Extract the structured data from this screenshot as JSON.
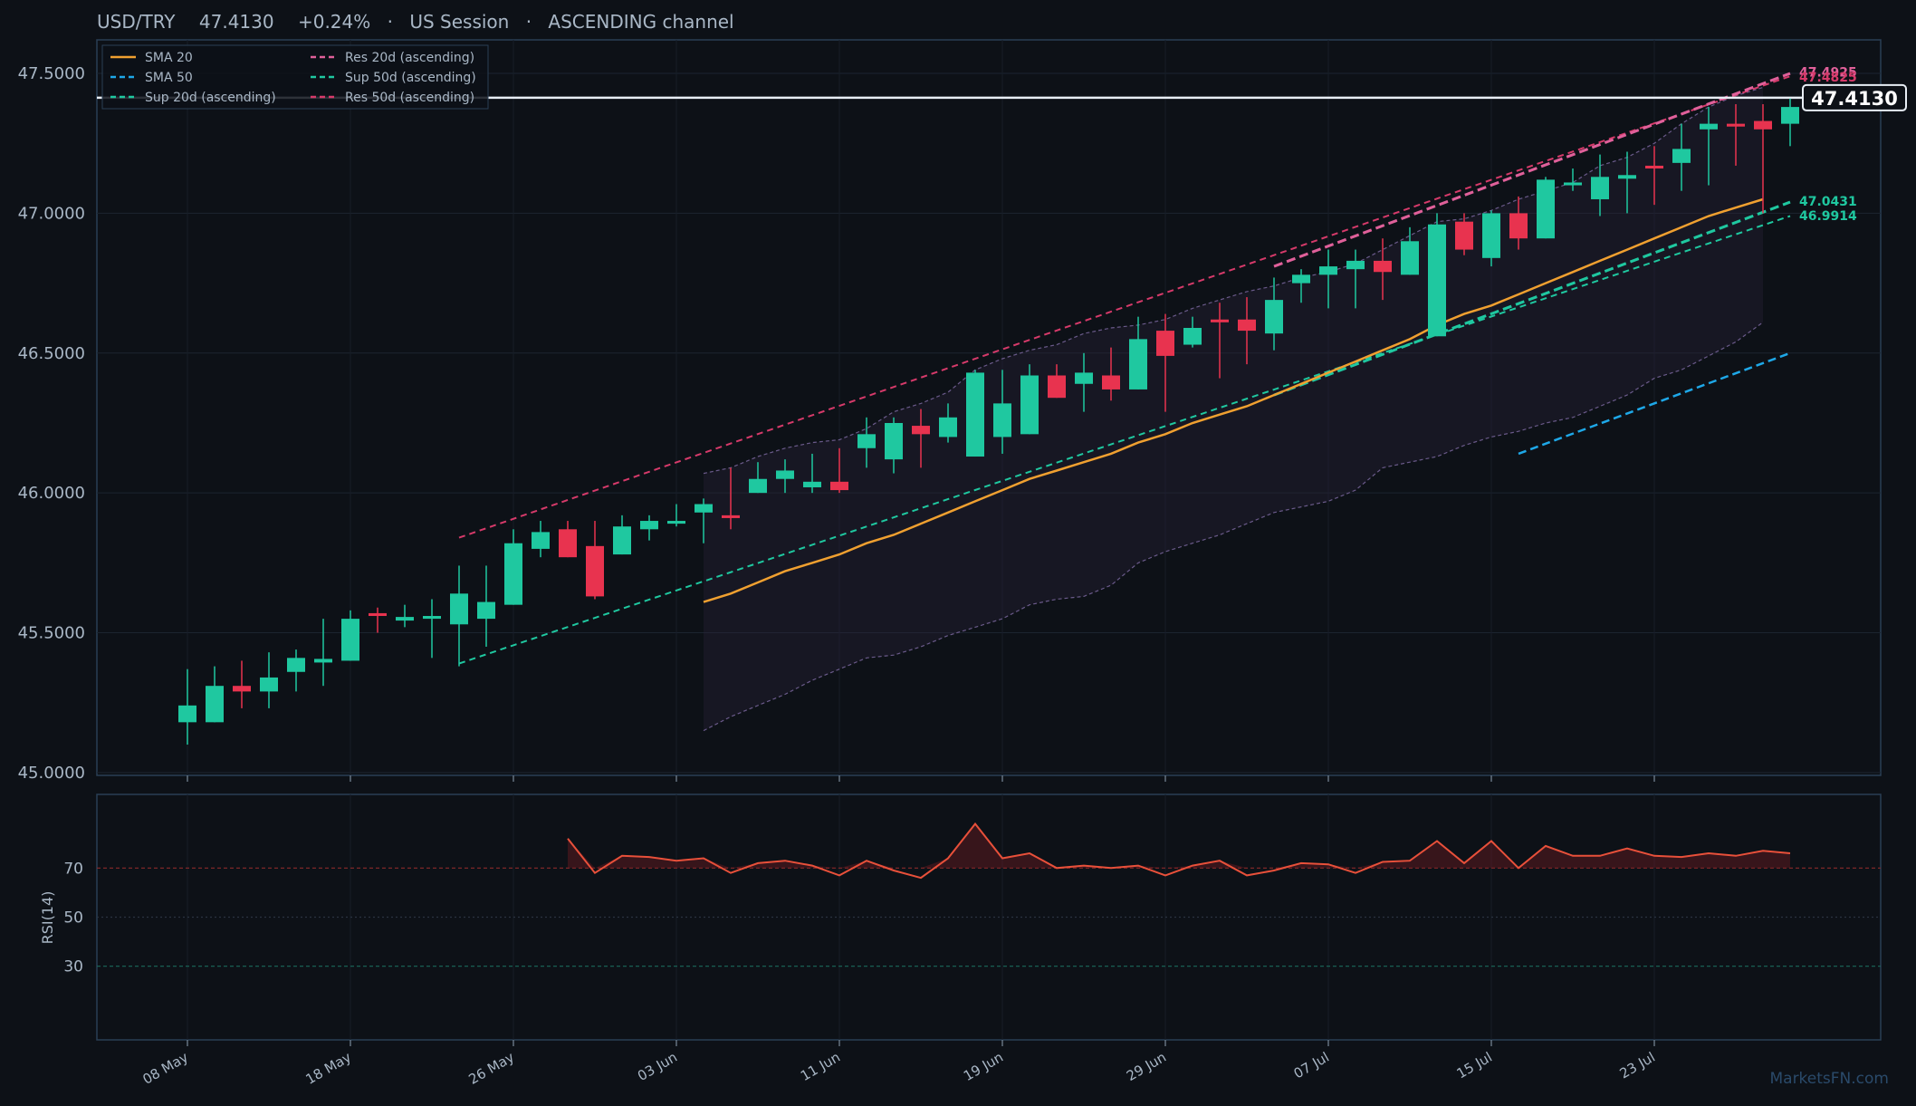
{
  "header": {
    "symbol": "USD/TRY",
    "price": "47.4130",
    "change": "+0.24%",
    "session": "US Session",
    "channel": "ASCENDING channel",
    "sep": "·"
  },
  "watermark": "MarketsFN.com",
  "colors": {
    "background": "#0d1117",
    "panel_border": "#2a3f55",
    "text": "#a9b7c6",
    "up": "#1fc8a0",
    "down": "#e8334f",
    "sma20": "#f0a030",
    "sma50": "#1ea8e8",
    "res": "#d63a6a",
    "res20": "#e0609a",
    "sup": "#1fc8a0",
    "rsi": "#e8503a",
    "band": "#6a5a8a"
  },
  "chart_data": [
    {
      "type": "candlestick",
      "title": "USD/TRY 47.4130 +0.24% · US Session · ASCENDING channel",
      "ylim": [
        44.99,
        47.62
      ],
      "yticks": [
        45.0,
        45.5,
        46.0,
        46.5,
        47.0,
        47.5
      ],
      "ytick_labels": [
        "45.0000",
        "45.5000",
        "46.0000",
        "46.5000",
        "47.0000",
        "47.5000"
      ],
      "xtick_labels": [
        "08 May",
        "18 May",
        "26 May",
        "03 Jun",
        "11 Jun",
        "19 Jun",
        "29 Jun",
        "07 Jul",
        "15 Jul",
        "23 Jul"
      ],
      "xtick_index": [
        0,
        6,
        12,
        18,
        24,
        30,
        36,
        42,
        48,
        54
      ],
      "grid": true,
      "legend_position": "top-left",
      "legend": [
        {
          "label": "SMA 20",
          "style": "solid",
          "color": "#f0a030"
        },
        {
          "label": "SMA 50",
          "style": "dashed",
          "color": "#1ea8e8"
        },
        {
          "label": "Sup 20d (ascending)",
          "style": "dashed",
          "color": "#1fc8a0"
        },
        {
          "label": "Res 20d (ascending)",
          "style": "dashed",
          "color": "#e0609a"
        },
        {
          "label": "Sup 50d (ascending)",
          "style": "dashed",
          "color": "#1fc8a0"
        },
        {
          "label": "Res 50d (ascending)",
          "style": "dashed",
          "color": "#d63a6a"
        }
      ],
      "candles": [
        {
          "o": 45.18,
          "h": 45.37,
          "l": 45.1,
          "c": 45.24
        },
        {
          "o": 45.18,
          "h": 45.38,
          "l": 45.18,
          "c": 45.31
        },
        {
          "o": 45.31,
          "h": 45.4,
          "l": 45.23,
          "c": 45.29
        },
        {
          "o": 45.29,
          "h": 45.43,
          "l": 45.23,
          "c": 45.34
        },
        {
          "o": 45.36,
          "h": 45.44,
          "l": 45.29,
          "c": 45.41
        },
        {
          "o": 45.4,
          "h": 45.55,
          "l": 45.31,
          "c": 45.4
        },
        {
          "o": 45.4,
          "h": 45.58,
          "l": 45.4,
          "c": 45.55
        },
        {
          "o": 45.57,
          "h": 45.59,
          "l": 45.5,
          "c": 45.56
        },
        {
          "o": 45.55,
          "h": 45.6,
          "l": 45.52,
          "c": 45.55
        },
        {
          "o": 45.55,
          "h": 45.62,
          "l": 45.41,
          "c": 45.56
        },
        {
          "o": 45.53,
          "h": 45.74,
          "l": 45.38,
          "c": 45.64
        },
        {
          "o": 45.55,
          "h": 45.74,
          "l": 45.45,
          "c": 45.61
        },
        {
          "o": 45.6,
          "h": 45.87,
          "l": 45.6,
          "c": 45.82
        },
        {
          "o": 45.8,
          "h": 45.9,
          "l": 45.77,
          "c": 45.86
        },
        {
          "o": 45.87,
          "h": 45.9,
          "l": 45.77,
          "c": 45.77
        },
        {
          "o": 45.81,
          "h": 45.9,
          "l": 45.62,
          "c": 45.63
        },
        {
          "o": 45.78,
          "h": 45.92,
          "l": 45.78,
          "c": 45.88
        },
        {
          "o": 45.87,
          "h": 45.92,
          "l": 45.83,
          "c": 45.9
        },
        {
          "o": 45.89,
          "h": 45.96,
          "l": 45.88,
          "c": 45.9
        },
        {
          "o": 45.93,
          "h": 45.98,
          "l": 45.82,
          "c": 45.96
        },
        {
          "o": 45.92,
          "h": 46.09,
          "l": 45.87,
          "c": 45.91
        },
        {
          "o": 46.0,
          "h": 46.11,
          "l": 46.0,
          "c": 46.05
        },
        {
          "o": 46.05,
          "h": 46.12,
          "l": 46.0,
          "c": 46.08
        },
        {
          "o": 46.02,
          "h": 46.14,
          "l": 46.0,
          "c": 46.04
        },
        {
          "o": 46.04,
          "h": 46.16,
          "l": 46.0,
          "c": 46.01
        },
        {
          "o": 46.16,
          "h": 46.27,
          "l": 46.09,
          "c": 46.21
        },
        {
          "o": 46.12,
          "h": 46.27,
          "l": 46.07,
          "c": 46.25
        },
        {
          "o": 46.24,
          "h": 46.3,
          "l": 46.09,
          "c": 46.21
        },
        {
          "o": 46.2,
          "h": 46.32,
          "l": 46.18,
          "c": 46.27
        },
        {
          "o": 46.13,
          "h": 46.44,
          "l": 46.13,
          "c": 46.43
        },
        {
          "o": 46.2,
          "h": 46.44,
          "l": 46.14,
          "c": 46.32
        },
        {
          "o": 46.21,
          "h": 46.46,
          "l": 46.21,
          "c": 46.42
        },
        {
          "o": 46.42,
          "h": 46.46,
          "l": 46.34,
          "c": 46.34
        },
        {
          "o": 46.39,
          "h": 46.5,
          "l": 46.29,
          "c": 46.43
        },
        {
          "o": 46.42,
          "h": 46.52,
          "l": 46.33,
          "c": 46.37
        },
        {
          "o": 46.37,
          "h": 46.63,
          "l": 46.37,
          "c": 46.55
        },
        {
          "o": 46.58,
          "h": 46.64,
          "l": 46.29,
          "c": 46.49
        },
        {
          "o": 46.53,
          "h": 46.63,
          "l": 46.52,
          "c": 46.59
        },
        {
          "o": 46.62,
          "h": 46.68,
          "l": 46.41,
          "c": 46.61
        },
        {
          "o": 46.62,
          "h": 46.7,
          "l": 46.46,
          "c": 46.58
        },
        {
          "o": 46.57,
          "h": 46.77,
          "l": 46.51,
          "c": 46.69
        },
        {
          "o": 46.75,
          "h": 46.8,
          "l": 46.68,
          "c": 46.78
        },
        {
          "o": 46.78,
          "h": 46.87,
          "l": 46.66,
          "c": 46.81
        },
        {
          "o": 46.8,
          "h": 46.87,
          "l": 46.66,
          "c": 46.83
        },
        {
          "o": 46.83,
          "h": 46.91,
          "l": 46.69,
          "c": 46.79
        },
        {
          "o": 46.78,
          "h": 46.95,
          "l": 46.78,
          "c": 46.9
        },
        {
          "o": 46.56,
          "h": 47.0,
          "l": 46.56,
          "c": 46.96
        },
        {
          "o": 46.97,
          "h": 47.0,
          "l": 46.85,
          "c": 46.87
        },
        {
          "o": 46.84,
          "h": 47.01,
          "l": 46.81,
          "c": 47.0
        },
        {
          "o": 47.0,
          "h": 47.06,
          "l": 46.87,
          "c": 46.91
        },
        {
          "o": 46.91,
          "h": 47.13,
          "l": 46.91,
          "c": 47.12
        },
        {
          "o": 47.1,
          "h": 47.16,
          "l": 47.08,
          "c": 47.11
        },
        {
          "o": 47.05,
          "h": 47.21,
          "l": 46.99,
          "c": 47.13
        },
        {
          "o": 47.13,
          "h": 47.22,
          "l": 47.0,
          "c": 47.13
        },
        {
          "o": 47.17,
          "h": 47.24,
          "l": 47.03,
          "c": 47.16
        },
        {
          "o": 47.18,
          "h": 47.32,
          "l": 47.08,
          "c": 47.23
        },
        {
          "o": 47.3,
          "h": 47.38,
          "l": 47.1,
          "c": 47.32
        },
        {
          "o": 47.32,
          "h": 47.39,
          "l": 47.17,
          "c": 47.31
        },
        {
          "o": 47.33,
          "h": 47.39,
          "l": 47.0,
          "c": 47.3
        },
        {
          "o": 47.32,
          "h": 47.41,
          "l": 47.24,
          "c": 47.38
        }
      ],
      "sma20": {
        "start_index": 19,
        "values": [
          45.61,
          45.64,
          45.68,
          45.72,
          45.75,
          45.78,
          45.82,
          45.85,
          45.89,
          45.93,
          45.97,
          46.01,
          46.05,
          46.08,
          46.11,
          46.14,
          46.18,
          46.21,
          46.25,
          46.28,
          46.31,
          46.35,
          46.39,
          46.43,
          46.47,
          46.51,
          46.55,
          46.6,
          46.64,
          46.67,
          46.71,
          46.75,
          46.79,
          46.83,
          46.87,
          46.91,
          46.95,
          46.99,
          47.02,
          47.05
        ]
      },
      "sma50": {
        "start_index": 49,
        "end_index": 59,
        "from": 46.14,
        "to": 46.5
      },
      "bands": {
        "start_index": 19,
        "upper": [
          46.07,
          46.09,
          46.13,
          46.16,
          46.18,
          46.19,
          46.23,
          46.29,
          46.32,
          46.36,
          46.44,
          46.48,
          46.51,
          46.53,
          46.57,
          46.59,
          46.6,
          46.62,
          46.66,
          46.69,
          46.72,
          46.74,
          46.77,
          46.79,
          46.82,
          46.87,
          46.92,
          46.97,
          46.98,
          47.01,
          47.05,
          47.08,
          47.11,
          47.17,
          47.2,
          47.25,
          47.32,
          47.38,
          47.42,
          47.45
        ],
        "lower": [
          45.15,
          45.2,
          45.24,
          45.28,
          45.33,
          45.37,
          45.41,
          45.42,
          45.45,
          45.49,
          45.52,
          45.55,
          45.6,
          45.62,
          45.63,
          45.67,
          45.75,
          45.79,
          45.82,
          45.85,
          45.89,
          45.93,
          45.95,
          45.97,
          46.01,
          46.09,
          46.11,
          46.13,
          46.17,
          46.2,
          46.22,
          46.25,
          46.27,
          46.31,
          46.35,
          46.41,
          46.44,
          46.49,
          46.54,
          46.61
        ]
      },
      "trendlines": [
        {
          "name": "Res 50d (ascending)",
          "from_index": 10,
          "from": 45.84,
          "to_index": 59,
          "to": 47.49
        },
        {
          "name": "Sup 50d (ascending)",
          "from_index": 10,
          "from": 45.39,
          "to_index": 59,
          "to": 46.99
        },
        {
          "name": "Res 20d (ascending)",
          "from_index": 40,
          "from": 46.81,
          "to_index": 59,
          "to": 47.5
        },
        {
          "name": "Sup 20d (ascending)",
          "from_index": 40,
          "from": 46.35,
          "to_index": 59,
          "to": 47.04
        }
      ],
      "last_price_line": 47.413,
      "right_labels": [
        {
          "text": "47.4925",
          "color": "#e0609a"
        },
        {
          "text": "47.4825",
          "color": "#d63a6a"
        },
        {
          "text": "47.0431",
          "color": "#1fc8a0"
        },
        {
          "text": "46.9914",
          "color": "#1fc8a0"
        }
      ],
      "price_tag": "47.4130"
    },
    {
      "type": "line",
      "ylabel": "RSI(14)",
      "ylim": [
        0,
        100
      ],
      "yticks": [
        30,
        50,
        70
      ],
      "ytick_labels": [
        "30",
        "50",
        "70"
      ],
      "overbought": 70,
      "oversold": 30,
      "rsi": {
        "start_index": 14,
        "values": [
          82,
          68,
          75,
          74.5,
          73,
          74,
          68,
          72,
          73,
          71,
          67,
          73,
          69,
          66,
          74,
          88,
          74,
          76,
          70,
          71,
          70,
          71,
          67,
          71,
          73,
          67,
          69,
          72,
          71.5,
          68,
          72.5,
          73,
          81,
          72,
          81,
          70,
          79,
          75,
          75,
          78,
          75,
          74.5,
          76,
          75,
          77,
          76
        ]
      }
    }
  ]
}
